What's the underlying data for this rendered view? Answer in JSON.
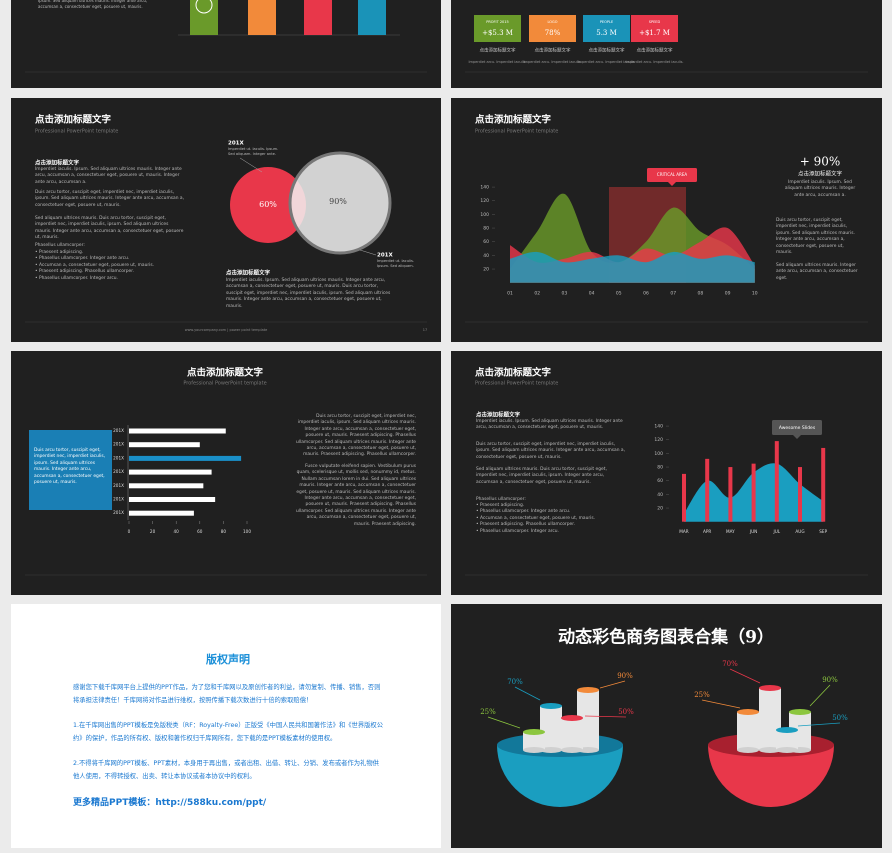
{
  "slide_a": {
    "text": "Ipsum. Sed aliquam ultrices mauris. Integer ante arcu, accumsan a, consectetuer eget, posuere ut, mauris."
  },
  "slide_b": {
    "items": [
      {
        "label": "PROFIT 2015",
        "value": "+$5.3 M",
        "color": "#6a9a2a",
        "title": "点击添加标题文字",
        "text": "Imperdiet arcu. Imperdiet iaculis."
      },
      {
        "label": "LOGO",
        "value": "78%",
        "color": "#f28a3a",
        "title": "点击添加标题文字",
        "text": "Imperdiet arcu. Imperdiet iaculis."
      },
      {
        "label": "PEOPLE",
        "value": "5.3 M",
        "color": "#1a93b8",
        "title": "点击添加标题文字",
        "text": "Imperdiet arcu. Imperdiet iaculis."
      },
      {
        "label": "SPEED",
        "value": "+$1.7 M",
        "color": "#e8374a",
        "title": "点击添加标题文字",
        "text": "Imperdiet arcu. Imperdiet iaculis."
      }
    ]
  },
  "slide_c": {
    "title": "点击添加标题文字",
    "subtitle": "Professional PowerPoint template",
    "heading": "点击添加标题文字",
    "lead": "Imperdiet iaculis. Ipsum. Sed aliquam ultrices mauris. Integer ante arcu, accumsan a, consectetuer eget, posuere ut, mauris. Integer ante arcu, accumsan a.",
    "paragraphs": [
      "Duis arcu tortor, suscipit eget, imperdiet nec, imperdiet iaculis, ipsum. Sed aliquam ultrices mauris. Integer ante arcu, accumsan a, consectetuer eget, posuere ut, mauris.",
      "Sed aliquam ultrices mauris. Duis arcu tortor, suscipit eget, imperdiet nec, imperdiet iaculis, ipsum. Sed aliquam ultrices mauris. Integer ante arcu, accumsan a, consectetuer eget, posuere ut, mauris."
    ],
    "bullets_title": "Phasellus ullamcorper:",
    "bullets": [
      "• Praesent adipiscing.",
      "• Phasellus ullamcorper. Integer ante arcu.",
      "• Accumsan a, consectetuer eget, posuere ut, mauris.",
      "• Praesent adipiscing. Phasellus ullamcorper.",
      "• Phasellus ullamcorper. Integer arcu."
    ],
    "circle_labels": [
      "60%",
      "90%"
    ],
    "years": [
      "201X",
      "201X"
    ],
    "notes": [
      "Imperdiet ut. Iaculis. Ipsum. Sed aliquam. Integer ante.",
      "Imperdiet ut. Iaculis. Ipsum. Sed aliquam."
    ],
    "side_heading": "点击添加标题文字",
    "side_text": "Imperdiet iaculis. Ipsum. Sed aliquam ultrices mauris. Integer ante arcu, accumsan a, consectetuer eget, posuere ut, mauris. Duis arcu tortor, suscipit eget, imperdiet nec, imperdiet iaculis, ipsum. Sed aliquam ultrices mauris. Integer ante arcu, accumsan a, consectetuer eget, posuere ut, mauris.",
    "footer": "www.yourcompany.com | power point template",
    "page": "17"
  },
  "slide_d": {
    "title": "点击添加标题文字",
    "subtitle": "Professional PowerPoint template",
    "callout": "CRITICAL AREA",
    "yticks": [
      20,
      40,
      60,
      80,
      100,
      120,
      140
    ],
    "categories": [
      "01",
      "02",
      "03",
      "04",
      "05",
      "06",
      "07",
      "08",
      "09",
      "10"
    ],
    "series": [
      {
        "color": "#6a9a2a",
        "values": [
          20,
          75,
          130,
          45,
          30,
          60,
          110,
          75,
          55,
          20
        ]
      },
      {
        "color": "#e8374a",
        "values": [
          55,
          30,
          35,
          45,
          30,
          50,
          40,
          60,
          80,
          25
        ]
      },
      {
        "color": "#1a9ec0",
        "values": [
          35,
          45,
          30,
          35,
          40,
          30,
          45,
          35,
          40,
          30
        ]
      }
    ],
    "stat": "+ 90%",
    "heading": "点击添加标题文字",
    "paragraphs": [
      "Imperdiet iaculis. Ipsum. Sed aliquam ultrices mauris. Integer ante arcu, accumsan a.",
      "Duis arcu tortor, suscipit eget, imperdiet nec, imperdiet iaculis, ipsum. Sed aliquam ultrices mauris. Integer ante arcu, accumsan a, consectetuer eget, posuere ut, mauris.",
      "Sed aliquam ultrices mauris. Integer ante arcu, accumsan a, consectetuer eget."
    ]
  },
  "slide_e": {
    "title": "点击添加标题文字",
    "subtitle": "Professional PowerPoint template",
    "box_text": "Duis arcu tortor, suscipit eget, imperdiet nec, imperdiet iaculis, ipsum. Sed aliquam ultrices mauris. Integer ante arcu, accumsan a, consectetuer eget, posuere ut, mauris.",
    "bar_labels": [
      "201X",
      "201X",
      "201X",
      "201X",
      "201X",
      "201X",
      "201X"
    ],
    "values": [
      82,
      60,
      95,
      70,
      63,
      73,
      55
    ],
    "colors": [
      "#ffffff",
      "#ffffff",
      "#1a8fc8",
      "#ffffff",
      "#ffffff",
      "#ffffff",
      "#ffffff"
    ],
    "xticks": [
      0,
      20,
      40,
      60,
      80,
      100
    ],
    "paragraphs": [
      "Duis arcu tortor, suscipit eget, imperdiet nec, imperdiet iaculis, ipsum. Sed aliquam ultrices mauris. Integer ante arcu, accumsan a, consectetuer eget, posuere ut, mauris. Praesent adipiscing. Phasellus ullamcorper. Sed aliquam ultrices mauris. Integer ante arcu, accumsan a, consectetuer eget, posuere ut, mauris. Praesent adipiscing. Phasellus ullamcorper.",
      "Fusce vulputate eleifend sapien. Vestibulum purus quam, scelerisque ut, mollis sed, nonummy id, metus. Nullam accumsan lorem in dui. Sed aliquam ultrices mauris. Integer ante arcu, accumsan a, consectetuer eget, posuere ut, mauris. Sed aliquam ultrices mauris. Integer ante arcu, accumsan a, consectetuer eget, posuere ut, mauris. Praesent adipiscing. Phasellus ullamcorper. Sed aliquam ultrices mauris. Integer ante arcu, accumsan a, consectetuer eget, posuere ut, mauris. Praesent adipiscing."
    ]
  },
  "slide_f": {
    "title": "点击添加标题文字",
    "subtitle": "Professional PowerPoint template",
    "heading": "点击添加标题文字",
    "paragraphs": [
      "Imperdiet iaculis. Ipsum. Sed aliquam ultrices mauris. Integer ante arcu, accumsan a, consectetuer eget, posuere ut, mauris.",
      "Duis arcu tortor, suscipit eget, imperdiet nec, imperdiet iaculis, ipsum. Sed aliquam ultrices mauris. Integer ante arcu, accumsan a, consectetuer eget, posuere ut, mauris.",
      "Sed aliquam ultrices mauris. Duis arcu tortor, suscipit eget, imperdiet nec, imperdiet iaculis, ipsum. Integer ante arcu, accumsan a, consectetuer eget, posuere ut, mauris."
    ],
    "bullets_title": "Phasellus ullamcorper:",
    "bullets": [
      "• Praesent adipiscing.",
      "• Phasellus ullamcorper. Integer ante arcu.",
      "• Accumsan a, consectetuer eget, posuere ut, mauris.",
      "• Praesent adipiscing. Phasellus ullamcorper.",
      "• Phasellus ullamcorper. Integer arcu."
    ],
    "callout": "Awesome Slides",
    "yticks": [
      20,
      40,
      60,
      80,
      100,
      120,
      140
    ],
    "categories": [
      "MAR",
      "APR",
      "MAY",
      "JUN",
      "JUL",
      "AUG",
      "SEP"
    ],
    "values": [
      70,
      92,
      80,
      85,
      118,
      80,
      108
    ],
    "area": [
      12,
      60,
      35,
      72,
      85,
      55,
      30
    ],
    "bar_color": "#e8374a",
    "area_color": "#1a9ec0"
  },
  "slide_g": {
    "title": "版权声明",
    "paragraphs": [
      "感谢您下载千库网平台上提供的PPT作品，为了您和千库网以及原创作者的利益，请勿复制、传播、销售，否则将承担法律责任！千库网将对作品进行维权，按照传播下载次数进行十倍的索取赔偿！",
      "1.在千库网出售的PPT模板是免版税类（RF：Royalty-Free）正版受《中国人民共和国著作法》和《世界版权公约》的保护，作品的所有权、版权和著作权归千库网所有，您下载的是PPT模板素材的使用权。",
      "2.不得将千库网的PPT模板、PPT素材，本身用于再出售，或者出租、出借、转让、分销、发布或者作为礼物供他人使用，不得转授权、出卖、转让本协议或者本协议中的权利。"
    ],
    "link": "更多精品PPT模板：http://588ku.com/ppt/"
  },
  "slide_h": {
    "title": "动态彩色商务图表合集（9）",
    "left": [
      {
        "label": "25%",
        "color": "#8cc63f"
      },
      {
        "label": "70%",
        "color": "#1a9ec0"
      },
      {
        "label": "90%",
        "color": "#f28a3a"
      },
      {
        "label": "50%",
        "color": "#e8374a"
      }
    ],
    "right": [
      {
        "label": "25%",
        "color": "#f28a3a"
      },
      {
        "label": "70%",
        "color": "#e8374a"
      },
      {
        "label": "90%",
        "color": "#8cc63f"
      },
      {
        "label": "50%",
        "color": "#1a9ec0"
      }
    ]
  }
}
